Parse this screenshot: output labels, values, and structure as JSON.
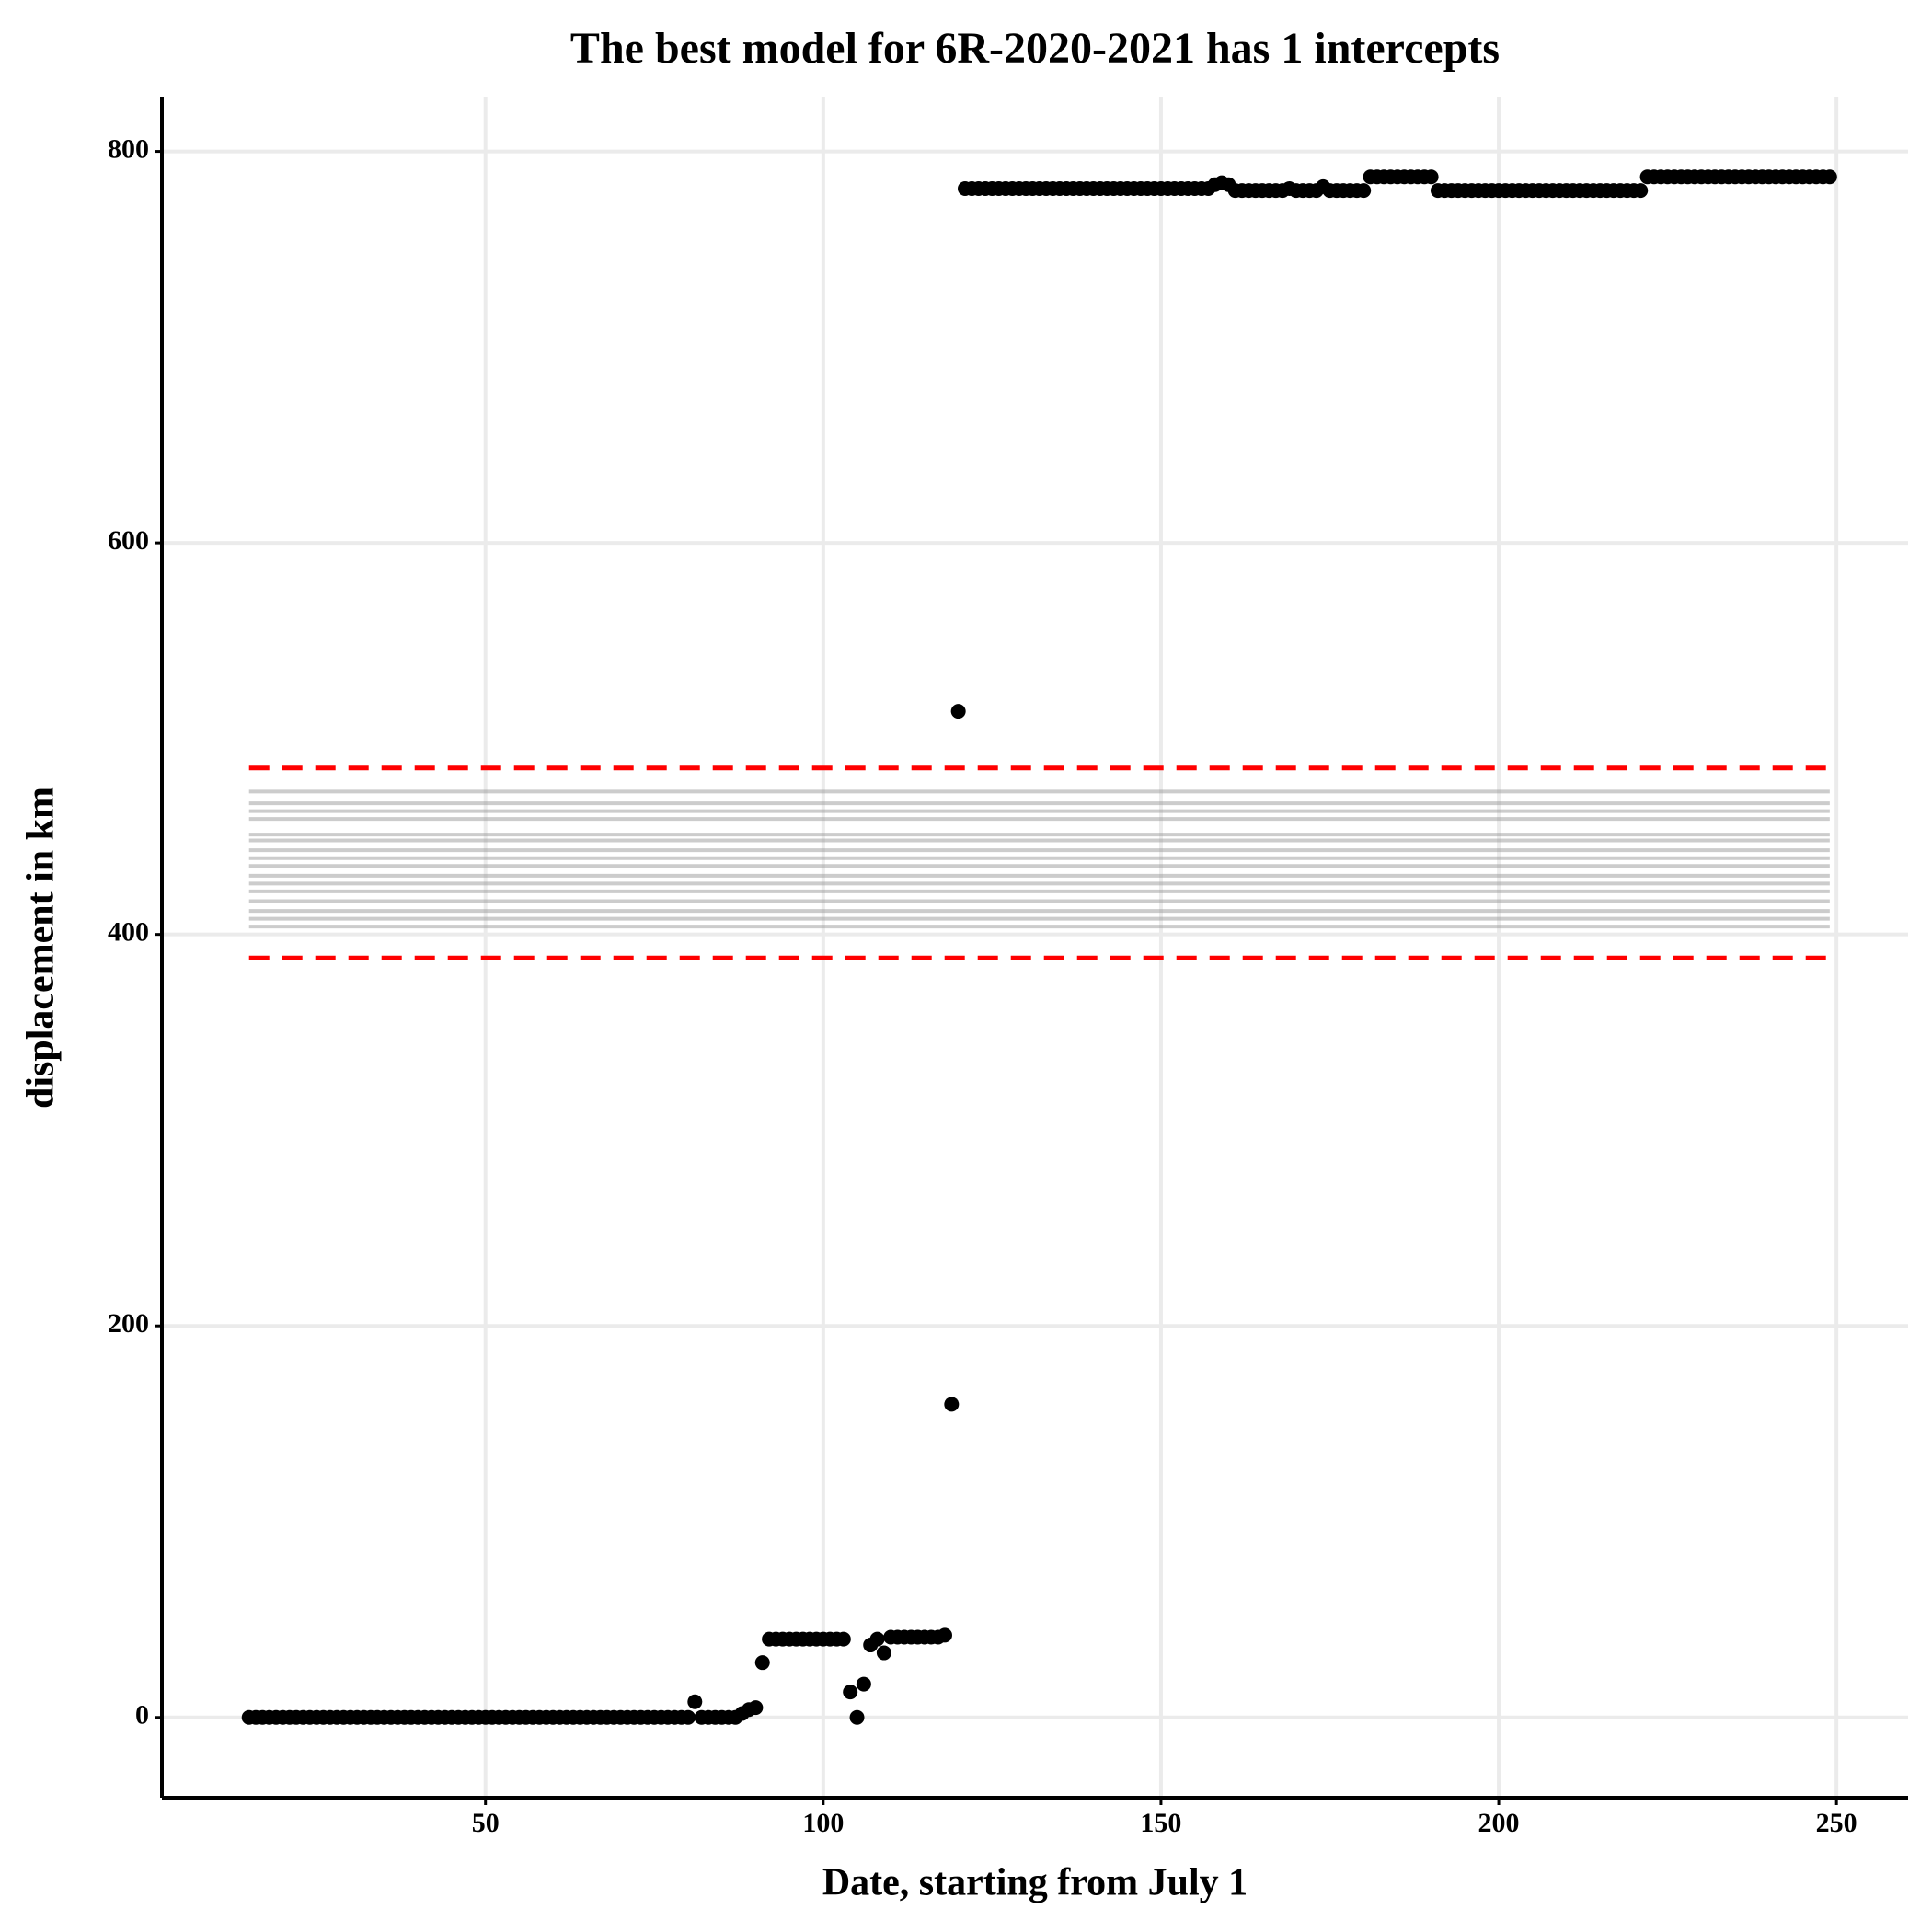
{
  "chart_data": {
    "type": "scatter",
    "title": "The best model for 6R-2020-2021 has 1 intercepts",
    "x_label": "Date, starting from July 1",
    "y_label": "displacement in km",
    "x": [
      15,
      16,
      17,
      18,
      19,
      20,
      21,
      22,
      23,
      24,
      25,
      26,
      27,
      28,
      29,
      30,
      31,
      32,
      33,
      34,
      35,
      36,
      37,
      38,
      39,
      40,
      41,
      42,
      43,
      44,
      45,
      46,
      47,
      48,
      49,
      50,
      51,
      52,
      53,
      54,
      55,
      56,
      57,
      58,
      59,
      60,
      61,
      62,
      63,
      64,
      65,
      66,
      67,
      68,
      69,
      70,
      71,
      72,
      73,
      74,
      75,
      76,
      77,
      78,
      79,
      80,
      81,
      82,
      83,
      84,
      85,
      86,
      87,
      88,
      89,
      90,
      91,
      92,
      93,
      94,
      95,
      96,
      97,
      98,
      99,
      100,
      101,
      102,
      103,
      104,
      105,
      106,
      107,
      108,
      109,
      110,
      111,
      112,
      113,
      114,
      115,
      116,
      117,
      118,
      119,
      120,
      121,
      122,
      123,
      124,
      125,
      126,
      127,
      128,
      129,
      130,
      131,
      132,
      133,
      134,
      135,
      136,
      137,
      138,
      139,
      140,
      141,
      142,
      143,
      144,
      145,
      146,
      147,
      148,
      149,
      150,
      151,
      152,
      153,
      154,
      155,
      156,
      157,
      158,
      159,
      160,
      161,
      162,
      163,
      164,
      165,
      166,
      167,
      168,
      169,
      170,
      171,
      172,
      173,
      174,
      175,
      176,
      177,
      178,
      179,
      180,
      181,
      182,
      183,
      184,
      185,
      186,
      187,
      188,
      189,
      190,
      191,
      192,
      193,
      194,
      195,
      196,
      197,
      198,
      199,
      200,
      201,
      202,
      203,
      204,
      205,
      206,
      207,
      208,
      209,
      210,
      211,
      212,
      213,
      214,
      215,
      216,
      217,
      218,
      219,
      220,
      221,
      222,
      223,
      224,
      225,
      226,
      227,
      228,
      229,
      230,
      231,
      232,
      233,
      234,
      235,
      236,
      237,
      238,
      239,
      240,
      241,
      242,
      243,
      244,
      245,
      246,
      247,
      248,
      249
    ],
    "series": [
      {
        "color": "#000000",
        "values": [
          0,
          0,
          0,
          0,
          0,
          0,
          0,
          0,
          0,
          0,
          0,
          0,
          0,
          0,
          0,
          0,
          0,
          0,
          0,
          0,
          0,
          0,
          0,
          0,
          0,
          0,
          0,
          0,
          0,
          0,
          0,
          0,
          0,
          0,
          0,
          0,
          0,
          0,
          0,
          0,
          0,
          0,
          0,
          0,
          0,
          0,
          0,
          0,
          0,
          0,
          0,
          0,
          0,
          0,
          0,
          0,
          0,
          0,
          0,
          0,
          0,
          0,
          0,
          0,
          0,
          0,
          8,
          0,
          0,
          0,
          0,
          0,
          0,
          2,
          4,
          5,
          28,
          40,
          40,
          40,
          40,
          40,
          40,
          40,
          40,
          40,
          40,
          40,
          40,
          13,
          0,
          17,
          37,
          40,
          33,
          41,
          41,
          41,
          41,
          41,
          41,
          41,
          41,
          42,
          160,
          514,
          781,
          781,
          781,
          781,
          781,
          781,
          781,
          781,
          781,
          781,
          781,
          781,
          781,
          781,
          781,
          781,
          781,
          781,
          781,
          781,
          781,
          781,
          781,
          781,
          781,
          781,
          781,
          781,
          781,
          781,
          781,
          781,
          781,
          781,
          781,
          781,
          781,
          783,
          784,
          783,
          780,
          780,
          780,
          780,
          780,
          780,
          780,
          780,
          781,
          780,
          780,
          780,
          780,
          782,
          780,
          780,
          780,
          780,
          780,
          780,
          787,
          787,
          787,
          787,
          787,
          787,
          787,
          787,
          787,
          787,
          780,
          780,
          780,
          780,
          780,
          780,
          780,
          780,
          780,
          780,
          780,
          780,
          780,
          780,
          780,
          780,
          780,
          780,
          780,
          780,
          780,
          780,
          780,
          780,
          780,
          780,
          780,
          780,
          780,
          780,
          780,
          787,
          787,
          787,
          787,
          787,
          787,
          787,
          787,
          787,
          787,
          787,
          787,
          787,
          787,
          787,
          787,
          787,
          787,
          787,
          787,
          787,
          787,
          787,
          787,
          787,
          787,
          787,
          787
        ]
      }
    ],
    "hlines": {
      "color": "#999999",
      "xrange": [
        15,
        249
      ],
      "values": [
        473,
        467,
        463,
        459,
        451,
        448,
        443,
        439,
        435,
        430,
        426,
        422,
        417,
        412,
        408,
        404
      ]
    },
    "bounds": {
      "color": "#ff0000",
      "xrange": [
        15,
        249
      ],
      "values": [
        485,
        388
      ]
    },
    "xlim": [
      2.1,
      260.6
    ],
    "ylim": [
      -41,
      828
    ],
    "xticks": [
      50,
      100,
      150,
      200,
      250
    ],
    "yticks": [
      0,
      200,
      400,
      600,
      800
    ],
    "grid": true
  }
}
